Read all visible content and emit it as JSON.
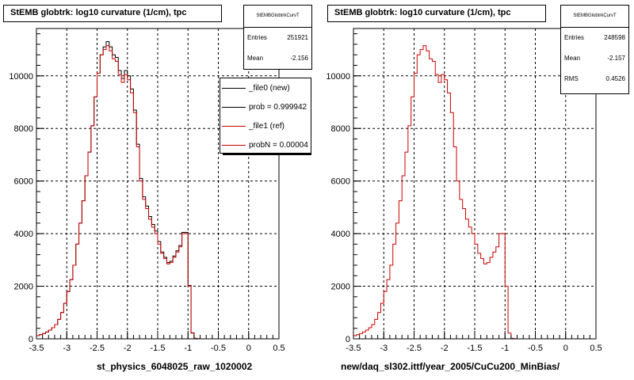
{
  "colors": {
    "new": "#000000",
    "ref": "#cc0000",
    "grid": "#000000",
    "frame": "#000000"
  },
  "panels": [
    {
      "title": "StEMB globtrk: log10 curvature (1/cm), tpc",
      "footer_label": "st_physics_6048025_raw_1020002",
      "stats": {
        "name": "StEMBGlobtrkCurvT",
        "rows": [
          {
            "label": "Entries",
            "value": "251921"
          },
          {
            "label": "Mean",
            "value": "-2.156"
          }
        ]
      },
      "legend": [
        {
          "text": "_file0 (new)",
          "color_key": "new"
        },
        {
          "text": "prob = 0.999942",
          "color_key": "new"
        },
        {
          "text": "_file1 (ref)",
          "color_key": "ref"
        },
        {
          "text": "probN = 0.00004",
          "color_key": "ref"
        }
      ]
    },
    {
      "title": "StEMB globtrk: log10 curvature (1/cm), tpc",
      "footer_label": "new/daq_sl302.ittf/year_2005/CuCu200_MinBias/",
      "stats": {
        "name": "StEMBGlobtrkCurvT",
        "rows": [
          {
            "label": "Entries",
            "value": "248598"
          },
          {
            "label": "Mean",
            "value": "-2.157"
          },
          {
            "label": "RMS",
            "value": "0.4526"
          }
        ]
      }
    }
  ],
  "chart_data": [
    {
      "type": "histogram",
      "title": "StEMB globtrk: log10 curvature (1/cm), tpc",
      "xlabel": "",
      "ylabel": "",
      "xlim": [
        -3.5,
        0.5
      ],
      "ylim": [
        0,
        11800
      ],
      "x_ticks": [
        -3.5,
        -3,
        -2.5,
        -2,
        -1.5,
        -1,
        -0.5,
        0,
        0.5
      ],
      "x_tick_labels": [
        "-3.5",
        "-3",
        "-2.5",
        "-2",
        "-1.5",
        "-1",
        "-0.5",
        "0",
        "0.5"
      ],
      "y_ticks": [
        0,
        2000,
        4000,
        6000,
        8000,
        10000
      ],
      "y_tick_labels": [
        "0",
        "2000",
        "4000",
        "6000",
        "8000",
        "10000"
      ],
      "grid": true,
      "bin_width": 0.05,
      "x_start": -3.5,
      "series": [
        {
          "name": "_file0 (new)",
          "color_key": "new",
          "values": [
            120,
            160,
            200,
            260,
            330,
            420,
            540,
            740,
            1000,
            1350,
            1800,
            2250,
            2800,
            3600,
            4400,
            5250,
            6200,
            7100,
            8100,
            9200,
            10100,
            10800,
            11100,
            11300,
            11100,
            10800,
            10700,
            10200,
            9900,
            10200,
            10000,
            9500,
            8700,
            7400,
            6100,
            5400,
            5050,
            4650,
            4350,
            4100,
            3700,
            3300,
            3100,
            2900,
            2950,
            3150,
            3350,
            3550,
            4050,
            4050,
            2030,
            230,
            20,
            5,
            0,
            0,
            0,
            0,
            0,
            0,
            0,
            0,
            0,
            0,
            0,
            0,
            0,
            0,
            0,
            0,
            0,
            0,
            0,
            0,
            0,
            0,
            0,
            0,
            0,
            0
          ]
        },
        {
          "name": "_file1 (ref)",
          "color_key": "ref",
          "values": [
            120,
            160,
            200,
            260,
            330,
            420,
            540,
            740,
            1000,
            1350,
            1800,
            2250,
            2800,
            3600,
            4400,
            5250,
            6200,
            7100,
            8100,
            9200,
            10100,
            10800,
            11000,
            11150,
            10950,
            10650,
            10550,
            10050,
            9750,
            10050,
            9850,
            9350,
            8600,
            7300,
            6000,
            5300,
            4950,
            4550,
            4250,
            4000,
            3600,
            3250,
            3050,
            2850,
            2900,
            3100,
            3300,
            3500,
            4000,
            4000,
            2000,
            220,
            20,
            5,
            0,
            0,
            0,
            0,
            0,
            0,
            0,
            0,
            0,
            0,
            0,
            0,
            0,
            0,
            0,
            0,
            0,
            0,
            0,
            0,
            0,
            0,
            0,
            0,
            0,
            0
          ]
        }
      ]
    },
    {
      "type": "histogram",
      "title": "StEMB globtrk: log10 curvature (1/cm), tpc",
      "xlabel": "",
      "ylabel": "",
      "xlim": [
        -3.5,
        0.5
      ],
      "ylim": [
        0,
        11800
      ],
      "x_ticks": [
        -3.5,
        -3,
        -2.5,
        -2,
        -1.5,
        -1,
        -0.5,
        0,
        0.5
      ],
      "x_tick_labels": [
        "-3.5",
        "-3",
        "-2.5",
        "-2",
        "-1.5",
        "-1",
        "-0.5",
        "0",
        "0.5"
      ],
      "y_ticks": [
        0,
        2000,
        4000,
        6000,
        8000,
        10000
      ],
      "y_tick_labels": [
        "0",
        "2000",
        "4000",
        "6000",
        "8000",
        "10000"
      ],
      "grid": true,
      "bin_width": 0.05,
      "x_start": -3.5,
      "series": [
        {
          "name": "_file1 (ref)",
          "color_key": "ref",
          "values": [
            120,
            160,
            200,
            260,
            330,
            420,
            540,
            740,
            1000,
            1350,
            1800,
            2250,
            2800,
            3600,
            4400,
            5250,
            6200,
            7100,
            8100,
            9200,
            10100,
            10800,
            11000,
            11150,
            10950,
            10650,
            10550,
            10050,
            9750,
            10050,
            9850,
            9350,
            8600,
            7300,
            6000,
            5300,
            4950,
            4550,
            4250,
            4000,
            3600,
            3250,
            3050,
            2850,
            2900,
            3100,
            3300,
            3500,
            4000,
            4000,
            2000,
            220,
            20,
            5,
            0,
            0,
            0,
            0,
            0,
            0,
            0,
            0,
            0,
            0,
            0,
            0,
            0,
            0,
            0,
            0,
            0,
            0,
            0,
            0,
            0,
            0,
            0,
            0,
            0,
            0
          ]
        }
      ]
    }
  ]
}
